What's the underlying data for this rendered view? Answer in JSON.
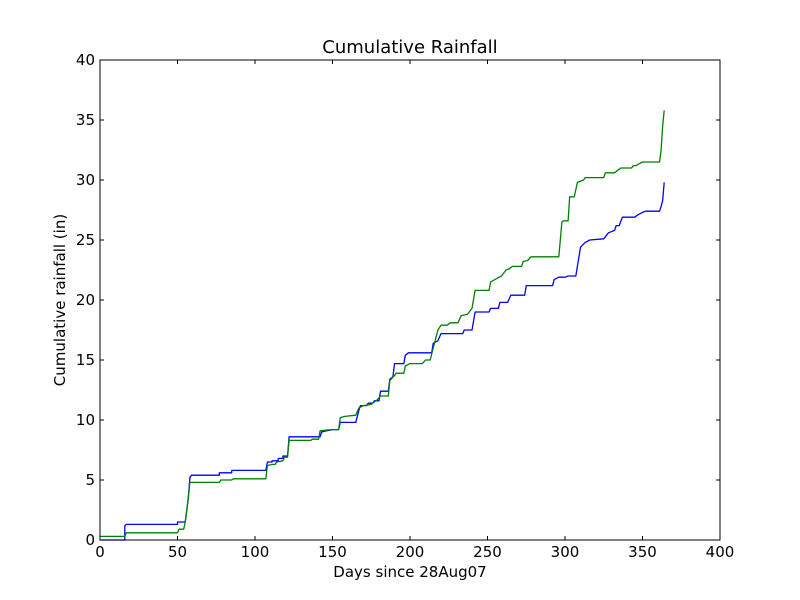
{
  "chart_data": {
    "type": "line",
    "title": "Cumulative Rainfall",
    "xlabel": "Days since 28Aug07",
    "ylabel": "Cumulative rainfall (in)",
    "xlim": [
      0,
      400
    ],
    "ylim": [
      0,
      40
    ],
    "xticks": [
      0,
      50,
      100,
      150,
      200,
      250,
      300,
      350,
      400
    ],
    "yticks": [
      0,
      5,
      10,
      15,
      20,
      25,
      30,
      35,
      40
    ],
    "grid": false,
    "series": [
      {
        "color": "#0000ff",
        "points": [
          [
            0,
            0
          ],
          [
            16,
            0
          ],
          [
            16,
            1.2
          ],
          [
            17,
            1.3
          ],
          [
            50,
            1.3
          ],
          [
            50,
            1.5
          ],
          [
            55,
            1.5
          ],
          [
            56,
            2.5
          ],
          [
            57,
            3.5
          ],
          [
            58,
            5.2
          ],
          [
            59,
            5.4
          ],
          [
            77,
            5.4
          ],
          [
            77,
            5.6
          ],
          [
            85,
            5.6
          ],
          [
            85,
            5.8
          ],
          [
            107,
            5.8
          ],
          [
            108,
            6.5
          ],
          [
            111,
            6.5
          ],
          [
            111,
            6.6
          ],
          [
            115,
            6.6
          ],
          [
            115,
            6.8
          ],
          [
            118,
            6.8
          ],
          [
            118,
            7.0
          ],
          [
            121,
            7.0
          ],
          [
            122,
            8.6
          ],
          [
            142,
            8.6
          ],
          [
            143,
            9.0
          ],
          [
            146,
            9.1
          ],
          [
            150,
            9.2
          ],
          [
            154,
            9.2
          ],
          [
            155,
            9.8
          ],
          [
            165,
            9.8
          ],
          [
            167,
            10.8
          ],
          [
            168,
            11.2
          ],
          [
            172,
            11.2
          ],
          [
            173,
            11.4
          ],
          [
            176,
            11.4
          ],
          [
            177,
            11.6
          ],
          [
            180,
            11.6
          ],
          [
            181,
            12.4
          ],
          [
            186,
            12.4
          ],
          [
            187,
            13.4
          ],
          [
            189,
            13.6
          ],
          [
            190,
            14.7
          ],
          [
            196,
            14.7
          ],
          [
            197,
            15.4
          ],
          [
            199,
            15.6
          ],
          [
            214,
            15.6
          ],
          [
            215,
            16.4
          ],
          [
            218,
            16.6
          ],
          [
            220,
            17.2
          ],
          [
            234,
            17.2
          ],
          [
            235,
            17.5
          ],
          [
            240,
            17.5
          ],
          [
            242,
            19.0
          ],
          [
            251,
            19.0
          ],
          [
            252,
            19.3
          ],
          [
            257,
            19.3
          ],
          [
            258,
            19.8
          ],
          [
            263,
            19.8
          ],
          [
            265,
            20.4
          ],
          [
            274,
            20.4
          ],
          [
            275,
            21.2
          ],
          [
            292,
            21.2
          ],
          [
            293,
            21.7
          ],
          [
            296,
            21.9
          ],
          [
            300,
            21.9
          ],
          [
            302,
            22.0
          ],
          [
            307,
            22.0
          ],
          [
            310,
            24.4
          ],
          [
            313,
            24.8
          ],
          [
            316,
            25.0
          ],
          [
            325,
            25.1
          ],
          [
            328,
            25.6
          ],
          [
            332,
            25.8
          ],
          [
            333,
            26.2
          ],
          [
            335,
            26.2
          ],
          [
            337,
            26.9
          ],
          [
            345,
            26.9
          ],
          [
            347,
            27.1
          ],
          [
            350,
            27.3
          ],
          [
            352,
            27.4
          ],
          [
            361,
            27.4
          ],
          [
            362,
            27.8
          ],
          [
            363,
            28.3
          ],
          [
            364,
            29.8
          ]
        ]
      },
      {
        "color": "#008000",
        "points": [
          [
            0,
            0.3
          ],
          [
            16,
            0.3
          ],
          [
            17,
            0.6
          ],
          [
            50,
            0.6
          ],
          [
            51,
            0.9
          ],
          [
            54,
            0.9
          ],
          [
            55,
            1.5
          ],
          [
            56,
            2.5
          ],
          [
            57,
            3.6
          ],
          [
            58,
            4.8
          ],
          [
            77,
            4.8
          ],
          [
            78,
            5.0
          ],
          [
            85,
            5.0
          ],
          [
            86,
            5.1
          ],
          [
            107,
            5.1
          ],
          [
            108,
            6.2
          ],
          [
            111,
            6.3
          ],
          [
            113,
            6.3
          ],
          [
            114,
            6.5
          ],
          [
            118,
            6.6
          ],
          [
            119,
            6.9
          ],
          [
            121,
            6.9
          ],
          [
            122,
            8.3
          ],
          [
            136,
            8.3
          ],
          [
            137,
            8.4
          ],
          [
            141,
            8.4
          ],
          [
            142,
            9.1
          ],
          [
            149,
            9.2
          ],
          [
            154,
            9.2
          ],
          [
            155,
            10.2
          ],
          [
            158,
            10.3
          ],
          [
            165,
            10.4
          ],
          [
            167,
            11.0
          ],
          [
            170,
            11.2
          ],
          [
            175,
            11.3
          ],
          [
            179,
            11.7
          ],
          [
            181,
            12.0
          ],
          [
            186,
            12.0
          ],
          [
            187,
            13.3
          ],
          [
            190,
            13.7
          ],
          [
            191,
            13.9
          ],
          [
            196,
            13.9
          ],
          [
            197,
            14.5
          ],
          [
            200,
            14.7
          ],
          [
            208,
            14.7
          ],
          [
            210,
            15.0
          ],
          [
            213,
            15.0
          ],
          [
            215,
            16.0
          ],
          [
            218,
            17.5
          ],
          [
            220,
            17.9
          ],
          [
            224,
            17.9
          ],
          [
            226,
            18.1
          ],
          [
            231,
            18.1
          ],
          [
            233,
            18.7
          ],
          [
            237,
            18.8
          ],
          [
            240,
            19.3
          ],
          [
            242,
            20.8
          ],
          [
            251,
            20.8
          ],
          [
            252,
            21.5
          ],
          [
            256,
            21.8
          ],
          [
            259,
            22.0
          ],
          [
            262,
            22.5
          ],
          [
            264,
            22.6
          ],
          [
            266,
            22.8
          ],
          [
            272,
            22.8
          ],
          [
            273,
            23.2
          ],
          [
            276,
            23.3
          ],
          [
            278,
            23.6
          ],
          [
            296,
            23.6
          ],
          [
            298,
            26.5
          ],
          [
            299,
            26.6
          ],
          [
            302,
            26.6
          ],
          [
            303,
            28.6
          ],
          [
            306,
            28.6
          ],
          [
            308,
            29.8
          ],
          [
            312,
            30.0
          ],
          [
            313,
            30.2
          ],
          [
            325,
            30.2
          ],
          [
            326,
            30.6
          ],
          [
            332,
            30.6
          ],
          [
            334,
            30.8
          ],
          [
            336,
            31.0
          ],
          [
            343,
            31.0
          ],
          [
            344,
            31.2
          ],
          [
            346,
            31.2
          ],
          [
            347,
            31.3
          ],
          [
            350,
            31.5
          ],
          [
            361,
            31.5
          ],
          [
            362,
            32.5
          ],
          [
            363,
            34.5
          ],
          [
            364,
            35.8
          ]
        ]
      }
    ]
  }
}
